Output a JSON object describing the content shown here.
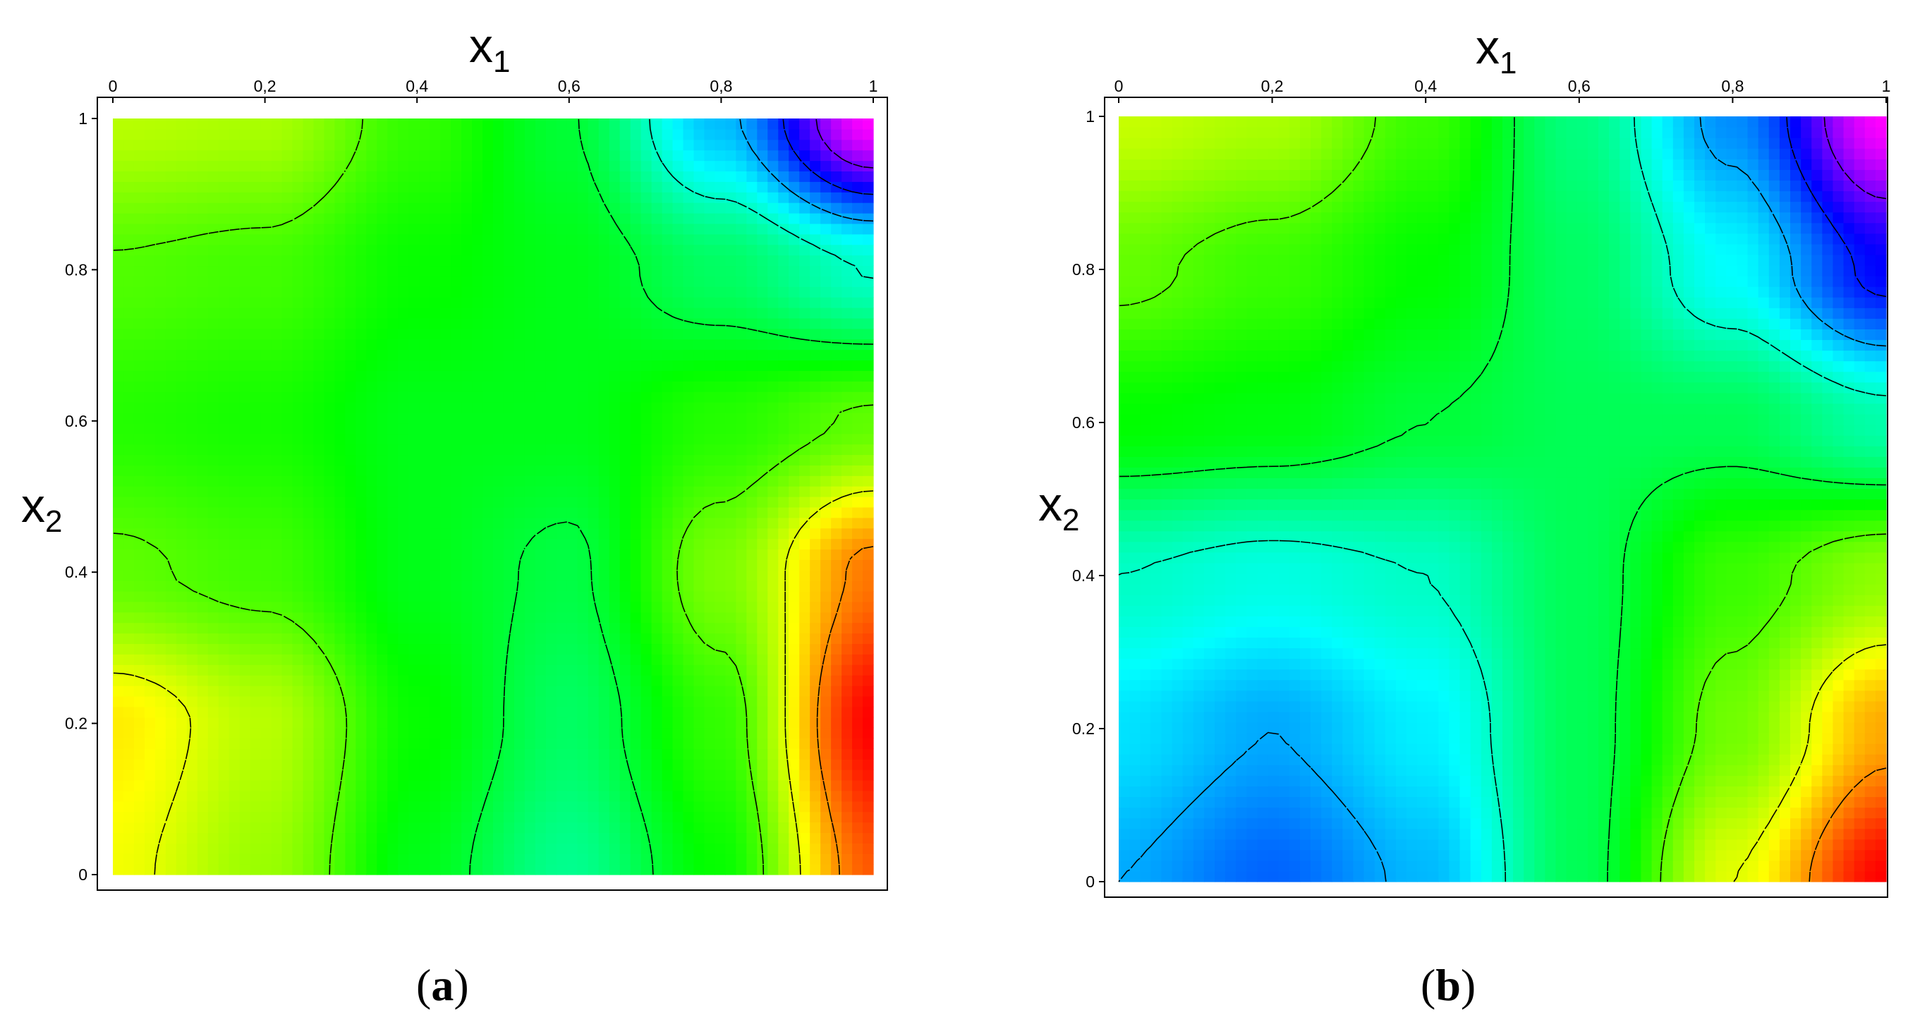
{
  "figure": {
    "panel_labels": [
      {
        "open": "(",
        "letter": "a",
        "close": ")"
      },
      {
        "open": "(",
        "letter": "b",
        "close": ")"
      }
    ]
  },
  "chart_data": [
    {
      "type": "heatmap",
      "panel": "a",
      "xlabel": "x",
      "xlabel_sub": "1",
      "ylabel": "x",
      "ylabel_sub": "2",
      "xlim": [
        0,
        1
      ],
      "ylim": [
        0,
        1
      ],
      "x_ticks": [
        0,
        0.2,
        0.4,
        0.6,
        0.8,
        1
      ],
      "y_ticks": [
        0,
        0.2,
        0.4,
        0.6,
        0.8,
        1
      ],
      "x_tick_labels": [
        "0",
        "0,2",
        "0,4",
        "0,6",
        "0,8",
        "1"
      ],
      "y_tick_labels": [
        "0",
        "0.2",
        "0.4",
        "0.6",
        "0.8",
        "1"
      ],
      "colormap": [
        "#ff00ff",
        "#0000ff",
        "#00ffff",
        "#00ff00",
        "#ffff00",
        "#ff0000"
      ],
      "contour_lines": true,
      "approx_values": {
        "x": [
          0,
          0.2,
          0.4,
          0.6,
          0.8,
          1
        ],
        "y": [
          0,
          0.2,
          0.4,
          0.6,
          0.8,
          1
        ],
        "z": [
          [
            0.68,
            0.62,
            0.5,
            0.42,
            0.52,
            0.8
          ],
          [
            0.7,
            0.64,
            0.52,
            0.45,
            0.55,
            0.86
          ],
          [
            0.58,
            0.56,
            0.5,
            0.47,
            0.6,
            0.78
          ],
          [
            0.54,
            0.53,
            0.5,
            0.5,
            0.54,
            0.58
          ],
          [
            0.57,
            0.56,
            0.52,
            0.5,
            0.45,
            0.38
          ],
          [
            0.64,
            0.63,
            0.55,
            0.48,
            0.3,
            0.0
          ]
        ]
      }
    },
    {
      "type": "heatmap",
      "panel": "b",
      "xlabel": "x",
      "xlabel_sub": "1",
      "ylabel": "x",
      "ylabel_sub": "2",
      "xlim": [
        0,
        1
      ],
      "ylim": [
        0,
        1
      ],
      "x_ticks": [
        0,
        0.2,
        0.4,
        0.6,
        0.8,
        1
      ],
      "y_ticks": [
        0,
        0.2,
        0.4,
        0.6,
        0.8,
        1
      ],
      "x_tick_labels": [
        "0",
        "0,2",
        "0,4",
        "0,6",
        "0,8",
        "1"
      ],
      "y_tick_labels": [
        "0",
        "0.2",
        "0.4",
        "0.6",
        "0.8",
        "1"
      ],
      "colormap": [
        "#ff00ff",
        "#0000ff",
        "#00ffff",
        "#00ff00",
        "#ffff00",
        "#ff0000"
      ],
      "contour_lines": true,
      "approx_values": {
        "x": [
          0,
          0.2,
          0.4,
          0.6,
          0.8,
          1
        ],
        "y": [
          0,
          0.2,
          0.4,
          0.6,
          0.8,
          1
        ],
        "z": [
          [
            0.32,
            0.27,
            0.33,
            0.5,
            0.72,
            0.92
          ],
          [
            0.36,
            0.32,
            0.37,
            0.5,
            0.64,
            0.8
          ],
          [
            0.42,
            0.4,
            0.42,
            0.5,
            0.6,
            0.66
          ],
          [
            0.56,
            0.55,
            0.52,
            0.5,
            0.5,
            0.44
          ],
          [
            0.63,
            0.6,
            0.56,
            0.49,
            0.38,
            0.2
          ],
          [
            0.7,
            0.68,
            0.6,
            0.47,
            0.3,
            0.02
          ]
        ]
      }
    }
  ]
}
